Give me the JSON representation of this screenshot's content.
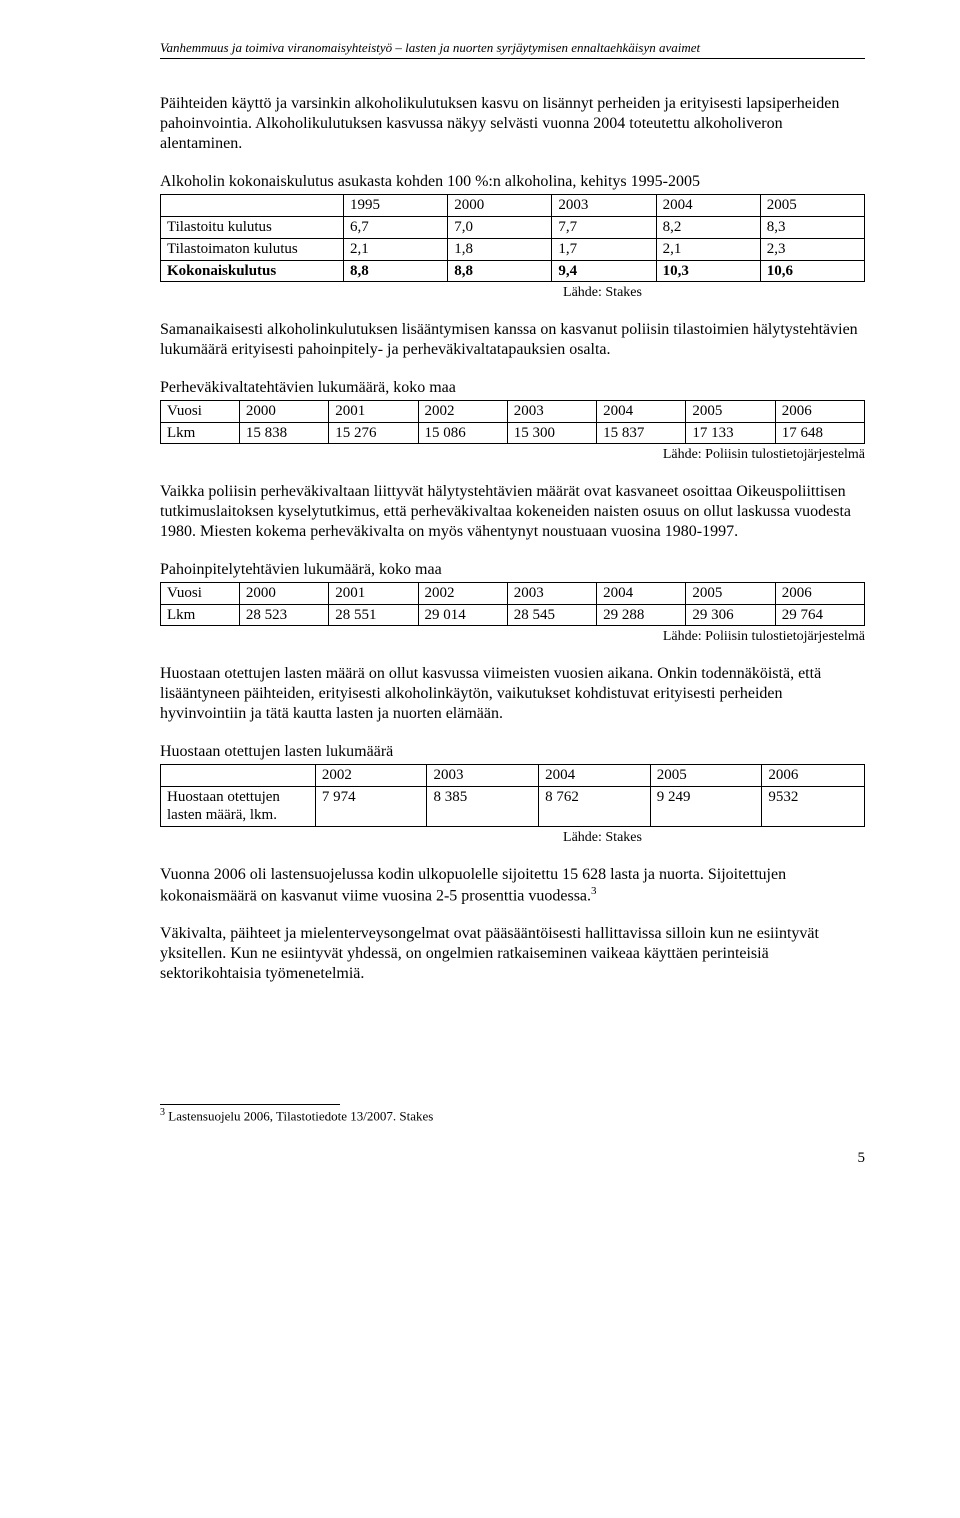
{
  "header": "Vanhemmuus ja toimiva viranomaisyhteistyö – lasten ja nuorten syrjäytymisen ennaltaehkäisyn avaimet",
  "p1": "Päihteiden käyttö ja varsinkin alkoholikulutuksen kasvu on lisännyt perheiden ja erityisesti lapsiperheiden pahoinvointia. Alkoholikulutuksen kasvussa näkyy selvästi vuonna 2004 toteutettu alkoholiveron alentaminen.",
  "t1": {
    "caption": "Alkoholin kokonaiskulutus asukasta kohden 100 %:n alkoholina, kehitys 1995-2005",
    "cols": [
      "",
      "1995",
      "2000",
      "2003",
      "2004",
      "2005"
    ],
    "rows": [
      [
        "Tilastoitu kulutus",
        "6,7",
        "7,0",
        "7,7",
        "8,2",
        "8,3"
      ],
      [
        "Tilastoimaton kulutus",
        "2,1",
        "1,8",
        "1,7",
        "2,1",
        "2,3"
      ]
    ],
    "boldrow": [
      "Kokonaiskulutus",
      "8,8",
      "8,8",
      "9,4",
      "10,3",
      "10,6"
    ],
    "source": "Lähde: Stakes"
  },
  "p2": "Samanaikaisesti alkoholinkulutuksen lisääntymisen kanssa on kasvanut poliisin tilastoimien hälytystehtävien lukumäärä erityisesti pahoinpitely- ja perheväkivaltatapauksien osalta.",
  "t2": {
    "caption": "Perheväkivaltatehtävien lukumäärä, koko maa",
    "cols": [
      "Vuosi",
      "2000",
      "2001",
      "2002",
      "2003",
      "2004",
      "2005",
      "2006"
    ],
    "row": [
      "Lkm",
      "15 838",
      "15 276",
      "15 086",
      "15 300",
      "15 837",
      "17 133",
      "17 648"
    ],
    "source": "Lähde: Poliisin tulostietojärjestelmä"
  },
  "p3": "Vaikka poliisin perheväkivaltaan liittyvät hälytystehtävien määrät ovat kasvaneet osoittaa Oikeuspoliittisen tutkimuslaitoksen kyselytutkimus, että perheväkivaltaa kokeneiden naisten osuus on ollut laskussa vuodesta 1980. Miesten kokema perheväkivalta on myös vähentynyt noustuaan vuosina 1980-1997.",
  "t3": {
    "caption": "Pahoinpitelytehtävien lukumäärä, koko maa",
    "cols": [
      "Vuosi",
      "2000",
      "2001",
      "2002",
      "2003",
      "2004",
      "2005",
      "2006"
    ],
    "row": [
      "Lkm",
      "28 523",
      "28 551",
      "29 014",
      "28 545",
      "29 288",
      "29 306",
      "29 764"
    ],
    "source": "Lähde: Poliisin tulostietojärjestelmä"
  },
  "p4": "Huostaan otettujen lasten määrä on ollut kasvussa viimeisten vuosien aikana. Onkin todennäköistä, että lisääntyneen päihteiden, erityisesti alkoholinkäytön, vaikutukset kohdistuvat erityisesti perheiden hyvinvointiin ja tätä kautta lasten ja nuorten elämään.",
  "t4": {
    "caption": "Huostaan otettujen lasten lukumäärä",
    "cols": [
      "",
      "2002",
      "2003",
      "2004",
      "2005",
      "2006"
    ],
    "row": [
      "Huostaan otettujen lasten määrä, lkm.",
      "7 974",
      "8 385",
      "8 762",
      "9 249",
      "9532"
    ],
    "source": "Lähde: Stakes"
  },
  "p5a": "Vuonna 2006 oli lastensuojelussa kodin ulkopuolelle sijoitettu 15 628 lasta ja nuorta. Sijoitettujen kokonaismäärä on kasvanut viime vuosina 2-5 prosenttia vuodessa.",
  "p5sup": "3",
  "p6": "Väkivalta, päihteet ja mielenterveysongelmat ovat pääsääntöisesti hallittavissa silloin kun ne esiintyvät yksitellen. Kun ne esiintyvät yhdessä, on ongelmien ratkaiseminen vaikeaa käyttäen perinteisiä sektorikohtaisia työmenetelmiä.",
  "footnote": {
    "num": "3",
    "text": " Lastensuojelu 2006, Tilastotiedote 13/2007. Stakes"
  },
  "pagenum": "5"
}
